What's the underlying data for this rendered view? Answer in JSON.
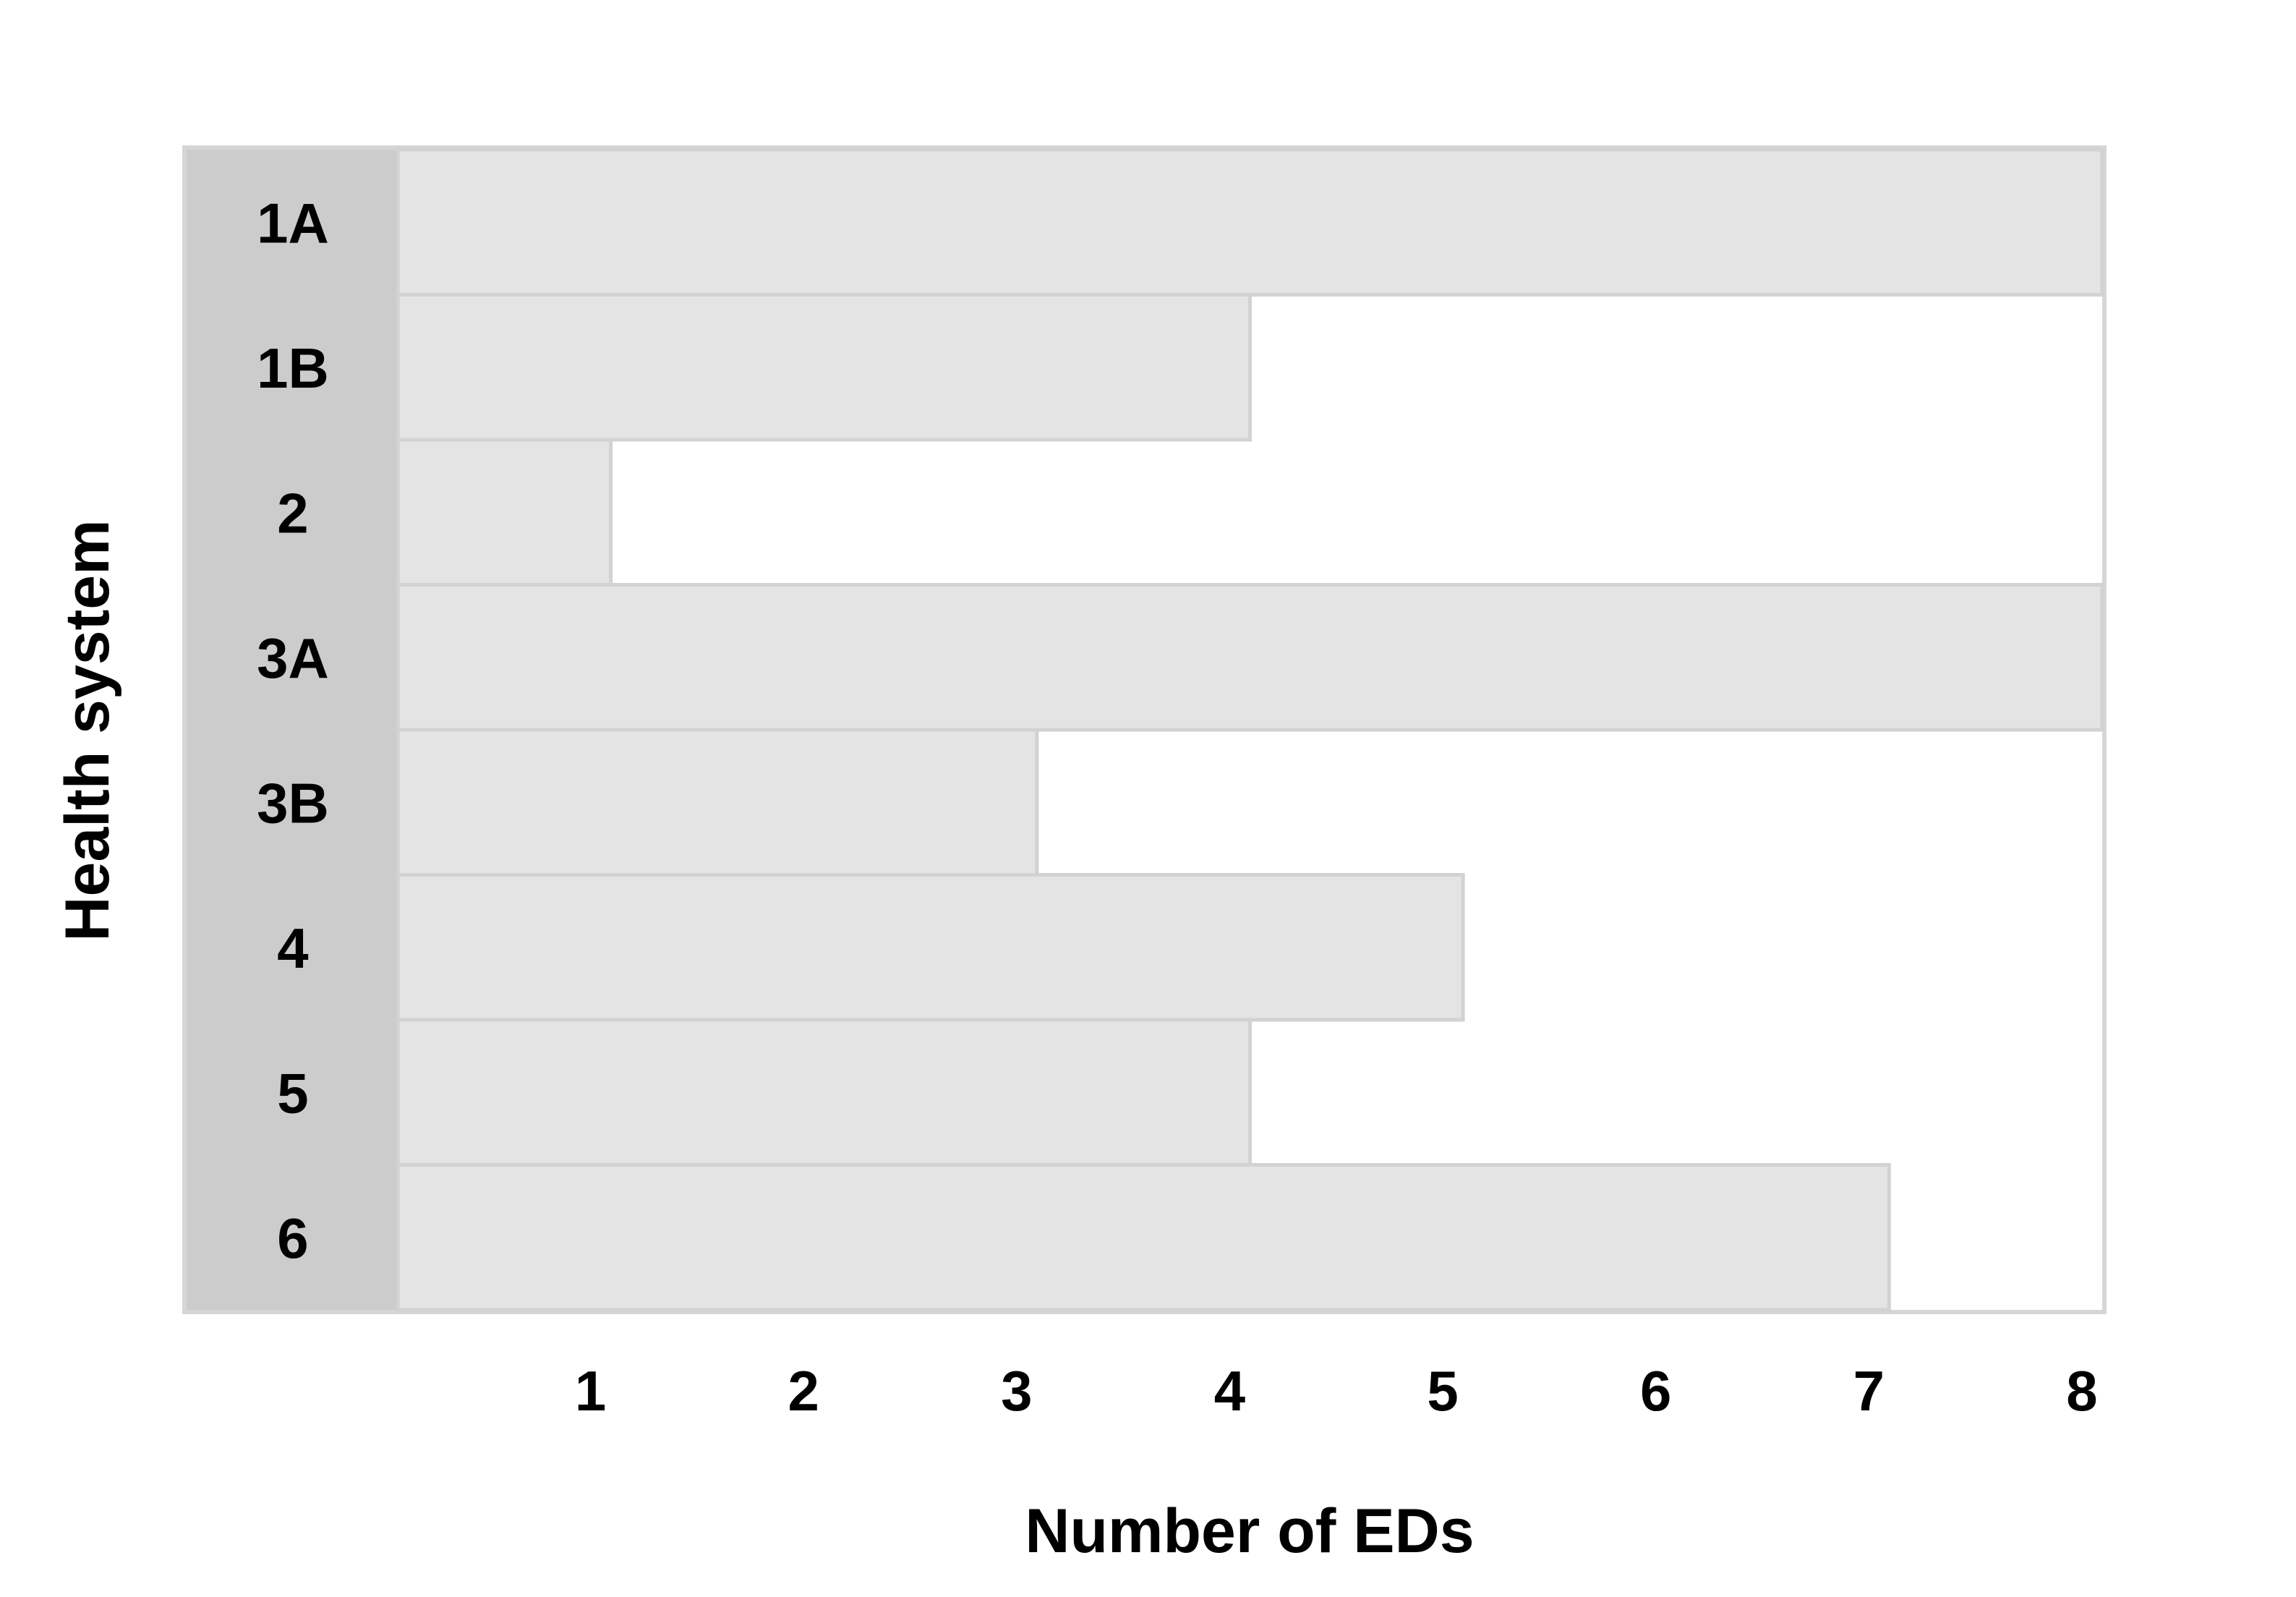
{
  "chart_data": {
    "type": "bar",
    "orientation": "horizontal",
    "categories": [
      "1A",
      "1B",
      "2",
      "3A",
      "3B",
      "4",
      "5",
      "6"
    ],
    "values": [
      8,
      4,
      1,
      8,
      3,
      5,
      4,
      7
    ],
    "xlabel": "Number of EDs",
    "ylabel": "Health system",
    "xlim": [
      0,
      8
    ],
    "xticks": [
      "1",
      "2",
      "3",
      "4",
      "5",
      "6",
      "7",
      "8"
    ],
    "grid": false,
    "legend": "none",
    "colors": {
      "bar_fill": "#e4e4e4",
      "bar_stroke": "#d2d2d2",
      "category_band": "#cccccc",
      "frame": "#d6d6d6",
      "text": "#000000"
    }
  }
}
